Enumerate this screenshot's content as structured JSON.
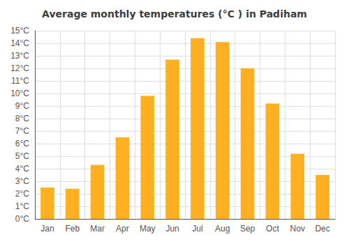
{
  "chart_data": {
    "type": "bar",
    "title": "Average monthly temperatures (°C ) in Padiham",
    "categories": [
      "Jan",
      "Feb",
      "Mar",
      "Apr",
      "May",
      "Jun",
      "Jul",
      "Aug",
      "Sep",
      "Oct",
      "Nov",
      "Dec"
    ],
    "values": [
      2.5,
      2.4,
      4.3,
      6.5,
      9.8,
      12.7,
      14.4,
      14.1,
      12.0,
      9.2,
      5.2,
      3.5
    ],
    "color": "#FFB020",
    "ylim": [
      0,
      15
    ],
    "yticks": [
      {
        "value": 0,
        "label": "0°C"
      },
      {
        "value": 1,
        "label": "1°C"
      },
      {
        "value": 2,
        "label": "2°C"
      },
      {
        "value": 3,
        "label": "3°C"
      },
      {
        "value": 4,
        "label": "4°C"
      },
      {
        "value": 5,
        "label": "5°C"
      },
      {
        "value": 6,
        "label": "6°C"
      },
      {
        "value": 7,
        "label": "7°C"
      },
      {
        "value": 8,
        "label": "8°C"
      },
      {
        "value": 9,
        "label": "9°C"
      },
      {
        "value": 10,
        "label": "10°C"
      },
      {
        "value": 11,
        "label": "11°C"
      },
      {
        "value": 12,
        "label": "12°C"
      },
      {
        "value": 13,
        "label": "13°C"
      },
      {
        "value": 14,
        "label": "14°C"
      },
      {
        "value": 15,
        "label": "15°C"
      }
    ],
    "grid": true
  }
}
